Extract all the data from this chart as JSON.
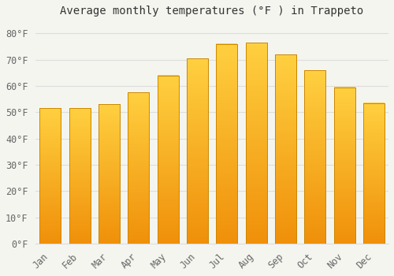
{
  "title": "Average monthly temperatures (°F ) in Trappeto",
  "months": [
    "Jan",
    "Feb",
    "Mar",
    "Apr",
    "May",
    "Jun",
    "Jul",
    "Aug",
    "Sep",
    "Oct",
    "Nov",
    "Dec"
  ],
  "values": [
    51.5,
    51.5,
    53.0,
    57.5,
    64.0,
    70.5,
    76.0,
    76.5,
    72.0,
    66.0,
    59.5,
    53.5
  ],
  "bar_color_top": "#FFD040",
  "bar_color_bottom": "#F0900A",
  "bar_edge_color": "#CC8800",
  "background_color": "#F5F5F0",
  "plot_bg_color": "#F5F5F0",
  "grid_color": "#DDDDDD",
  "text_color": "#666666",
  "title_color": "#333333",
  "ylim": [
    0,
    84
  ],
  "yticks": [
    0,
    10,
    20,
    30,
    40,
    50,
    60,
    70,
    80
  ],
  "title_fontsize": 10,
  "tick_fontsize": 8.5
}
